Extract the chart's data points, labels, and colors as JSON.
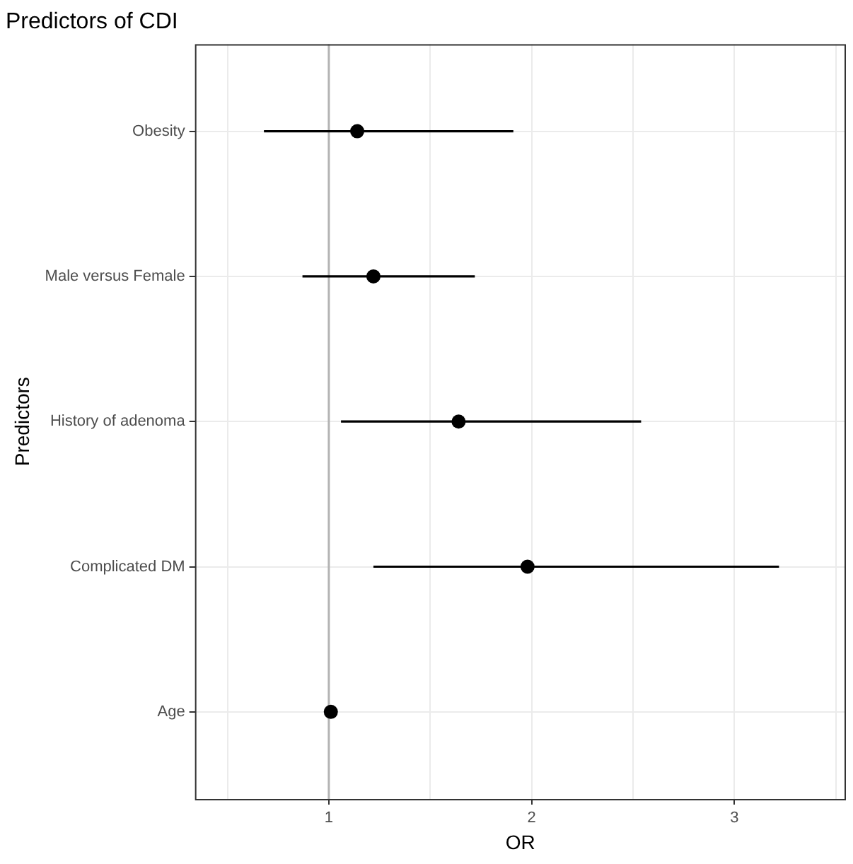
{
  "chart_data": {
    "type": "scatter",
    "orientation": "horizontal",
    "title": "Predictors of CDI",
    "xlabel": "OR",
    "ylabel": "Predictors",
    "categories": [
      "Obesity",
      "Male versus Female",
      "History of adenoma",
      "Complicated DM",
      "Age"
    ],
    "values": [
      1.14,
      1.22,
      1.64,
      1.98,
      1.01
    ],
    "errors": [
      [
        0.68,
        1.91
      ],
      [
        0.87,
        1.72
      ],
      [
        1.06,
        2.54
      ],
      [
        1.22,
        3.22
      ],
      null
    ],
    "color": "#000000",
    "marker": "circle",
    "xlim": [
      0.34,
      3.55
    ],
    "xticks": [
      {
        "value": 0.5,
        "label": null
      },
      1,
      {
        "value": 1.5,
        "label": null
      },
      2,
      {
        "value": 2.5,
        "label": null
      },
      3,
      {
        "value": 3.5,
        "label": null
      }
    ],
    "ref_lines": [
      {
        "axis": "x",
        "value": 1,
        "color": "#b3b3b3"
      }
    ],
    "grid": true,
    "legend": false
  }
}
